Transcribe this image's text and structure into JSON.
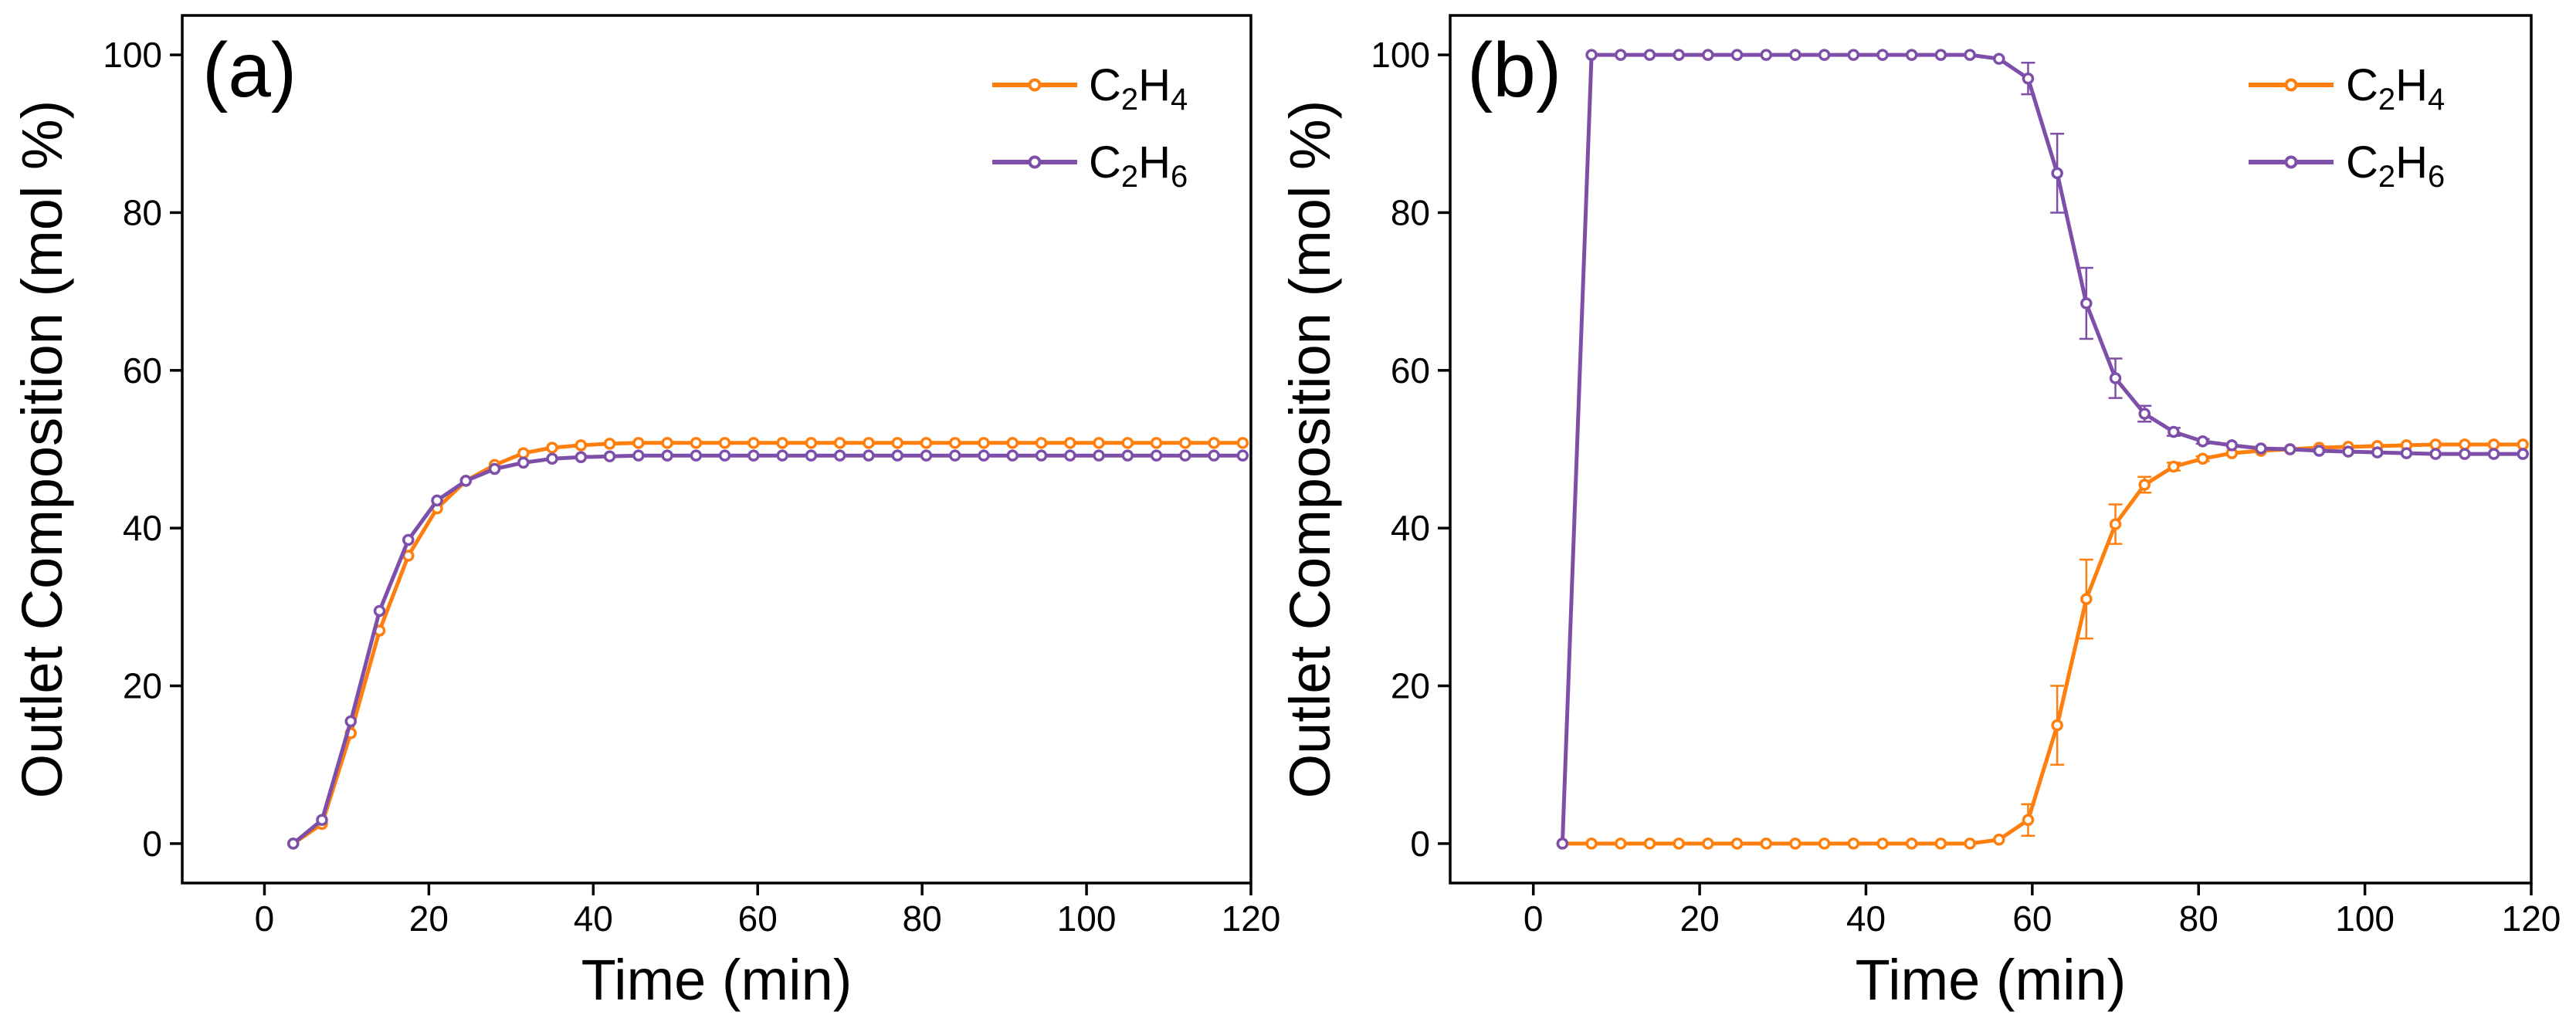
{
  "colors": {
    "c2h4": "#ff7f0e",
    "c2h6": "#7e4fa8",
    "axis": "#000000"
  },
  "legend": [
    {
      "base": "C",
      "sub1": "2",
      "mid": "H",
      "sub2": "4",
      "color": "#ff7f0e"
    },
    {
      "base": "C",
      "sub1": "2",
      "mid": "H",
      "sub2": "6",
      "color": "#7e4fa8"
    }
  ],
  "chart_data": [
    {
      "type": "line",
      "panel_label": "(a)",
      "xlabel": "Time (min)",
      "ylabel": "Outlet Composition (mol %)",
      "xlim": [
        -10,
        120
      ],
      "ylim": [
        -5,
        105
      ],
      "xticks": [
        0,
        20,
        40,
        60,
        80,
        100,
        120
      ],
      "yticks": [
        0,
        20,
        40,
        60,
        80,
        100
      ],
      "legend_position": "top-right",
      "series": [
        {
          "name": "C2H4",
          "color": "#ff7f0e",
          "x": [
            3.5,
            7,
            10.5,
            14,
            17.5,
            21,
            24.5,
            28,
            31.5,
            35,
            38.5,
            42,
            45.5,
            49,
            52.5,
            56,
            59.5,
            63,
            66.5,
            70,
            73.5,
            77,
            80.5,
            84,
            87.5,
            91,
            94.5,
            98,
            101.5,
            105,
            108.5,
            112,
            115.5,
            119
          ],
          "y": [
            0,
            2.5,
            14,
            27,
            36.5,
            42.5,
            46,
            48,
            49.5,
            50.2,
            50.5,
            50.7,
            50.8,
            50.8,
            50.8,
            50.8,
            50.8,
            50.8,
            50.8,
            50.8,
            50.8,
            50.8,
            50.8,
            50.8,
            50.8,
            50.8,
            50.8,
            50.8,
            50.8,
            50.8,
            50.8,
            50.8,
            50.8,
            50.8
          ]
        },
        {
          "name": "C2H6",
          "color": "#7e4fa8",
          "x": [
            3.5,
            7,
            10.5,
            14,
            17.5,
            21,
            24.5,
            28,
            31.5,
            35,
            38.5,
            42,
            45.5,
            49,
            52.5,
            56,
            59.5,
            63,
            66.5,
            70,
            73.5,
            77,
            80.5,
            84,
            87.5,
            91,
            94.5,
            98,
            101.5,
            105,
            108.5,
            112,
            115.5,
            119
          ],
          "y": [
            0,
            3,
            15.5,
            29.5,
            38.5,
            43.5,
            46,
            47.5,
            48.3,
            48.8,
            49,
            49.1,
            49.2,
            49.2,
            49.2,
            49.2,
            49.2,
            49.2,
            49.2,
            49.2,
            49.2,
            49.2,
            49.2,
            49.2,
            49.2,
            49.2,
            49.2,
            49.2,
            49.2,
            49.2,
            49.2,
            49.2,
            49.2,
            49.2
          ]
        }
      ]
    },
    {
      "type": "line",
      "panel_label": "(b)",
      "xlabel": "Time (min)",
      "ylabel": "Outlet Composition (mol %)",
      "xlim": [
        -10,
        120
      ],
      "ylim": [
        -5,
        105
      ],
      "xticks": [
        0,
        20,
        40,
        60,
        80,
        100,
        120
      ],
      "yticks": [
        0,
        20,
        40,
        60,
        80,
        100
      ],
      "legend_position": "top-right",
      "series": [
        {
          "name": "C2H4",
          "color": "#ff7f0e",
          "x": [
            3.5,
            7,
            10.5,
            14,
            17.5,
            21,
            24.5,
            28,
            31.5,
            35,
            38.5,
            42,
            45.5,
            49,
            52.5,
            56,
            59.5,
            63,
            66.5,
            70,
            73.5,
            77,
            80.5,
            84,
            87.5,
            91,
            94.5,
            98,
            101.5,
            105,
            108.5,
            112,
            115.5,
            119
          ],
          "y": [
            0,
            0,
            0,
            0,
            0,
            0,
            0,
            0,
            0,
            0,
            0,
            0,
            0,
            0,
            0,
            0.5,
            3,
            15,
            31,
            40.5,
            45.5,
            47.8,
            48.8,
            49.5,
            49.8,
            50,
            50.2,
            50.3,
            50.4,
            50.5,
            50.6,
            50.6,
            50.6,
            50.6
          ],
          "error": [
            0,
            0,
            0,
            0,
            0,
            0,
            0,
            0,
            0,
            0,
            0,
            0,
            0,
            0,
            0,
            0,
            2,
            5,
            5,
            2.5,
            1,
            0.5,
            0.3,
            0,
            0,
            0,
            0,
            0,
            0,
            0,
            0,
            0,
            0,
            0
          ]
        },
        {
          "name": "C2H6",
          "color": "#7e4fa8",
          "x": [
            3.5,
            7,
            10.5,
            14,
            17.5,
            21,
            24.5,
            28,
            31.5,
            35,
            38.5,
            42,
            45.5,
            49,
            52.5,
            56,
            59.5,
            63,
            66.5,
            70,
            73.5,
            77,
            80.5,
            84,
            87.5,
            91,
            94.5,
            98,
            101.5,
            105,
            108.5,
            112,
            115.5,
            119
          ],
          "y": [
            0,
            100,
            100,
            100,
            100,
            100,
            100,
            100,
            100,
            100,
            100,
            100,
            100,
            100,
            100,
            99.5,
            97,
            85,
            68.5,
            59,
            54.5,
            52.2,
            51,
            50.5,
            50.1,
            50,
            49.8,
            49.7,
            49.6,
            49.5,
            49.4,
            49.4,
            49.4,
            49.4
          ],
          "error": [
            0,
            0,
            0,
            0,
            0,
            0,
            0,
            0,
            0,
            0,
            0,
            0,
            0,
            0,
            0,
            0,
            2,
            5,
            4.5,
            2.5,
            1,
            0.5,
            0.3,
            0,
            0,
            0,
            0,
            0,
            0,
            0,
            0,
            0,
            0,
            0
          ]
        }
      ]
    }
  ]
}
